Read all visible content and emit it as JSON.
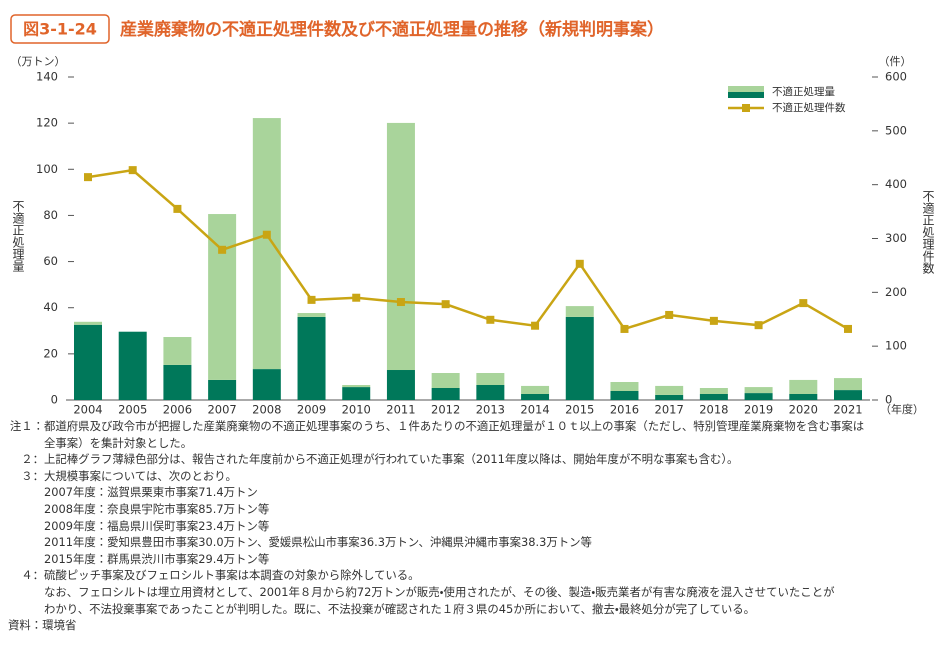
{
  "chart_data": {
    "type": "combo",
    "figure_label": "図3-1-24",
    "title": "産業廃棄物の不適正処理件数及び不適正処理量の推移（新規判明事案）",
    "y_label": "不適正処理量",
    "y2_label": "不適正処理件数",
    "y_unit": "（万トン）",
    "y2_unit": "（件）",
    "x_unit": "（年度）",
    "categories": [
      "2004",
      "2005",
      "2006",
      "2007",
      "2008",
      "2009",
      "2010",
      "2011",
      "2012",
      "2013",
      "2014",
      "2015",
      "2016",
      "2017",
      "2018",
      "2019",
      "2020",
      "2021"
    ],
    "series": [
      {
        "name": "不適正処理量",
        "type": "bar",
        "color": "#00785a",
        "values": [
          32.6,
          29.6,
          15.2,
          8.7,
          13.4,
          36.0,
          5.6,
          13.0,
          5.2,
          6.5,
          2.6,
          36.0,
          3.9,
          2.2,
          2.6,
          3.0,
          2.6,
          4.3
        ]
      },
      {
        "type": "bar",
        "color": "#a9d49b",
        "values": [
          1.3,
          0,
          12.1,
          71.9,
          108.8,
          1.7,
          0.9,
          107.1,
          6.5,
          5.2,
          3.5,
          4.7,
          3.9,
          3.9,
          2.6,
          2.6,
          6.1,
          5.2
        ]
      },
      {
        "name": "不適正処理件数",
        "type": "line",
        "axis": "y2",
        "color": "#c9a514",
        "values": [
          414,
          427,
          355,
          279,
          307,
          186,
          190,
          182,
          178,
          149,
          138,
          253,
          132,
          158,
          147,
          139,
          180,
          132
        ]
      }
    ],
    "ylim": [
      0,
      140
    ],
    "yticks": [
      0,
      20,
      40,
      60,
      80,
      100,
      120,
      140
    ],
    "y2lim": [
      0,
      600
    ],
    "y2ticks": [
      0,
      100,
      200,
      300,
      400,
      500,
      600
    ],
    "legend": "upper right"
  },
  "notes": [
    {
      "label": "注１：",
      "lines": [
        "都道府県及び政令市が把握した産業廃棄物の不適正処理事案のうち、１件あたりの不適正処理量が１０ｔ以上の事案（ただし、特別管理産業廃棄物を含む事案は",
        "全事案）を集計対象とした。"
      ]
    },
    {
      "label": "２：",
      "lines": [
        "上記棒グラフ薄緑色部分は、報告された年度前から不適正処理が行われていた事案（2011年度以降は、開始年度が不明な事案も含む）。"
      ]
    },
    {
      "label": "３：",
      "lines": [
        "大規模事案については、次のとおり。",
        "2007年度：滋賀県栗東市事案71.4万トン",
        "2008年度：奈良県宇陀市事案85.7万トン等",
        "2009年度：福島県川俣町事案23.4万トン等",
        "2011年度：愛知県豊田市事案30.0万トン、愛媛県松山市事案36.3万トン、沖縄県沖縄市事案38.3万トン等",
        "2015年度：群馬県渋川市事案29.4万トン等"
      ]
    },
    {
      "label": "４：",
      "lines": [
        "硫酸ピッチ事案及びフェロシルト事案は本調査の対象から除外している。",
        "なお、フェロシルトは埋立用資材として、2001年８月から約72万トンが販売・使用されたが、その後、製造・販売業者が有害な廃液を混入させていたことが",
        "わかり、不法投棄事案であったことが判明した。既に、不法投棄が確認された１府３県の45か所において、撤去・最終処分が完了している。"
      ]
    }
  ],
  "source": "資料：環境省"
}
